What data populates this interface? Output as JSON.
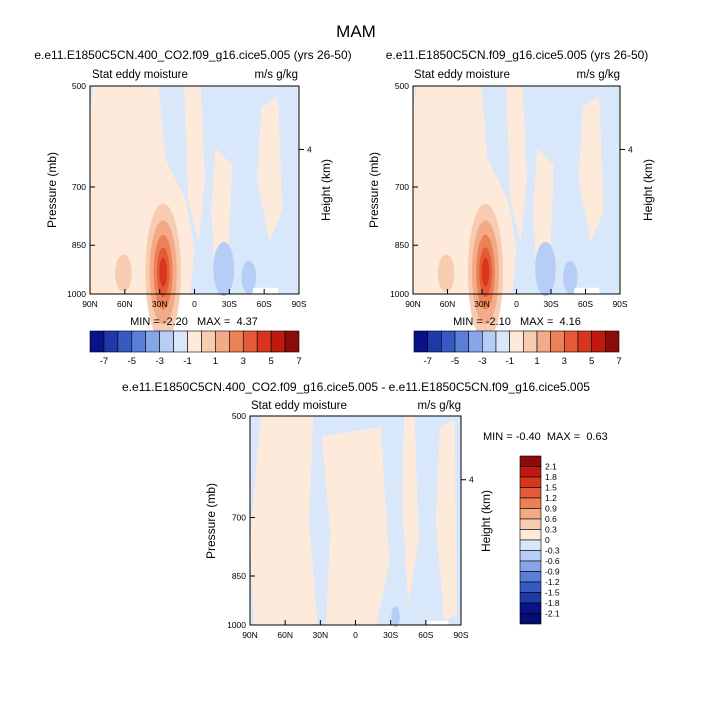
{
  "page_title": "MAM",
  "colors": {
    "panel_background": "#ffffff",
    "frame": "#000000",
    "missing": "#ffffff"
  },
  "chart_data": [
    {
      "type": "heatmap",
      "title": "e.e11.E1850C5CN.400_CO2.f09_g16.cice5.005 (yrs 26-50)",
      "left_label": "Stat eddy moisture",
      "right_label": "m/s g/kg",
      "ylabel": "Pressure (mb)",
      "right_axis_label": "Height (km)",
      "x_axis": {
        "range": [
          "90N",
          "90S"
        ],
        "ticks": [
          "90N",
          "60N",
          "30N",
          "0",
          "30S",
          "60S",
          "90S"
        ]
      },
      "y_axis": {
        "range": [
          500,
          1000
        ],
        "ticks": [
          500,
          700,
          850,
          1000
        ]
      },
      "right_ticks": [
        "4"
      ],
      "min_max_text": "MIN = -2.20   MAX =  4.37",
      "min": -2.2,
      "max": 4.37,
      "colorbar": {
        "orientation": "horizontal",
        "labels": [
          "-7",
          "-5",
          "-3",
          "-1",
          "1",
          "3",
          "5",
          "7"
        ],
        "colors": [
          "#08138a",
          "#1d3aa8",
          "#3659c4",
          "#5a7fd9",
          "#87a6ea",
          "#b6cdf5",
          "#d9e7fb",
          "#fdeadb",
          "#f8ccb1",
          "#f3aa86",
          "#ec8158",
          "#e45a36",
          "#d8361c",
          "#c01a10",
          "#8e0b0b"
        ]
      },
      "features": [
        {
          "lat_center": 27,
          "p_center": 930,
          "peak": 4.37,
          "label": "maximum near 27N"
        }
      ]
    },
    {
      "type": "heatmap",
      "title": "e.e11.E1850C5CN.f09_g16.cice5.005 (yrs 26-50)",
      "left_label": "Stat eddy moisture",
      "right_label": "m/s g/kg",
      "ylabel": "Pressure (mb)",
      "right_axis_label": "Height (km)",
      "x_axis": {
        "range": [
          "90N",
          "90S"
        ],
        "ticks": [
          "90N",
          "60N",
          "30N",
          "0",
          "30S",
          "60S",
          "90S"
        ]
      },
      "y_axis": {
        "range": [
          500,
          1000
        ],
        "ticks": [
          500,
          700,
          850,
          1000
        ]
      },
      "right_ticks": [
        "4"
      ],
      "min_max_text": "MIN = -2.10   MAX =  4.16",
      "min": -2.1,
      "max": 4.16,
      "colorbar": {
        "orientation": "horizontal",
        "labels": [
          "-7",
          "-5",
          "-3",
          "-1",
          "1",
          "3",
          "5",
          "7"
        ],
        "colors": [
          "#08138a",
          "#1d3aa8",
          "#3659c4",
          "#5a7fd9",
          "#87a6ea",
          "#b6cdf5",
          "#d9e7fb",
          "#fdeadb",
          "#f8ccb1",
          "#f3aa86",
          "#ec8158",
          "#e45a36",
          "#d8361c",
          "#c01a10",
          "#8e0b0b"
        ]
      },
      "features": [
        {
          "lat_center": 27,
          "p_center": 930,
          "peak": 4.16,
          "label": "maximum near 27N"
        }
      ]
    },
    {
      "type": "heatmap",
      "title": "e.e11.E1850C5CN.400_CO2.f09_g16.cice5.005 - e.e11.E1850C5CN.f09_g16.cice5.005",
      "left_label": "Stat eddy moisture",
      "right_label": "m/s g/kg",
      "ylabel": "Pressure (mb)",
      "right_axis_label": "Height (km)",
      "x_axis": {
        "range": [
          "90N",
          "90S"
        ],
        "ticks": [
          "90N",
          "60N",
          "30N",
          "0",
          "30S",
          "60S",
          "90S"
        ]
      },
      "y_axis": {
        "range": [
          500,
          1000
        ],
        "ticks": [
          500,
          700,
          850,
          1000
        ]
      },
      "right_ticks": [
        "4"
      ],
      "min_max_text": "MIN = -0.40  MAX =  0.63",
      "min": -0.4,
      "max": 0.63,
      "colorbar": {
        "orientation": "vertical",
        "labels": [
          "2.1",
          "1.8",
          "1.5",
          "1.2",
          "0.9",
          "0.6",
          "0.3",
          "0",
          "-0.3",
          "-0.6",
          "-0.9",
          "-1.2",
          "-1.5",
          "-1.8",
          "-2.1"
        ],
        "colors": [
          "#8e0b0b",
          "#c01a10",
          "#d8361c",
          "#e45a36",
          "#ec8158",
          "#f3aa86",
          "#f8ccb1",
          "#fdeadb",
          "#d9e7fb",
          "#b6cdf5",
          "#87a6ea",
          "#5a7fd9",
          "#3659c4",
          "#1d3aa8",
          "#08138a",
          "#050d6e"
        ]
      }
    }
  ]
}
